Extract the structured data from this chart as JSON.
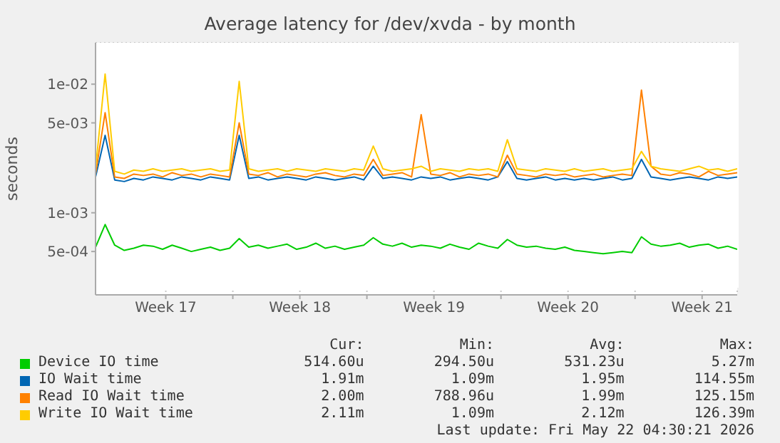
{
  "chart_data": {
    "type": "line",
    "title": "Average latency for /dev/xvda - by month",
    "ylabel": "seconds",
    "log": "y",
    "grid": true,
    "legend": "bottom",
    "marker": "none",
    "line_style": "solid",
    "xlim": [
      "2026-04-19T20:00",
      "2026-05-23T08:00"
    ],
    "xticks": [
      {
        "value": "2026-04-23T12:00",
        "label": "Week 17"
      },
      {
        "value": "2026-04-27T00:00",
        "label": null
      },
      {
        "value": "2026-04-30T12:00",
        "label": "Week 18"
      },
      {
        "value": "2026-05-04T00:00",
        "label": null
      },
      {
        "value": "2026-05-07T12:00",
        "label": "Week 19"
      },
      {
        "value": "2026-05-11T00:00",
        "label": null
      },
      {
        "value": "2026-05-14T12:00",
        "label": "Week 20"
      },
      {
        "value": "2026-05-18T00:00",
        "label": null
      },
      {
        "value": "2026-05-21T12:00",
        "label": "Week 21"
      }
    ],
    "ylim": [
      0.00023,
      0.021
    ],
    "yticks": [
      {
        "value": 0.0005,
        "label": "5e-04"
      },
      {
        "value": 0.001,
        "label": "1e-03"
      },
      {
        "value": 0.005,
        "label": "5e-03"
      },
      {
        "value": 0.01,
        "label": "1e-02"
      }
    ],
    "x": [
      "2026-04-19T20:00",
      "2026-04-20T08:00",
      "2026-04-20T20:00",
      "2026-04-21T08:00",
      "2026-04-21T20:00",
      "2026-04-22T08:00",
      "2026-04-22T20:00",
      "2026-04-23T08:00",
      "2026-04-23T20:00",
      "2026-04-24T08:00",
      "2026-04-24T20:00",
      "2026-04-25T08:00",
      "2026-04-25T20:00",
      "2026-04-26T08:00",
      "2026-04-26T20:00",
      "2026-04-27T08:00",
      "2026-04-27T20:00",
      "2026-04-28T08:00",
      "2026-04-28T20:00",
      "2026-04-29T08:00",
      "2026-04-29T20:00",
      "2026-04-30T08:00",
      "2026-04-30T20:00",
      "2026-05-01T08:00",
      "2026-05-01T20:00",
      "2026-05-02T08:00",
      "2026-05-02T20:00",
      "2026-05-03T08:00",
      "2026-05-03T20:00",
      "2026-05-04T08:00",
      "2026-05-04T20:00",
      "2026-05-05T08:00",
      "2026-05-05T20:00",
      "2026-05-06T08:00",
      "2026-05-06T20:00",
      "2026-05-07T08:00",
      "2026-05-07T20:00",
      "2026-05-08T08:00",
      "2026-05-08T20:00",
      "2026-05-09T08:00",
      "2026-05-09T20:00",
      "2026-05-10T08:00",
      "2026-05-10T20:00",
      "2026-05-11T08:00",
      "2026-05-11T20:00",
      "2026-05-12T08:00",
      "2026-05-12T20:00",
      "2026-05-13T08:00",
      "2026-05-13T20:00",
      "2026-05-14T08:00",
      "2026-05-14T20:00",
      "2026-05-15T08:00",
      "2026-05-15T20:00",
      "2026-05-16T08:00",
      "2026-05-16T20:00",
      "2026-05-17T08:00",
      "2026-05-17T20:00",
      "2026-05-18T08:00",
      "2026-05-18T20:00",
      "2026-05-19T08:00",
      "2026-05-19T20:00",
      "2026-05-20T08:00",
      "2026-05-20T20:00",
      "2026-05-21T08:00",
      "2026-05-21T20:00",
      "2026-05-22T08:00",
      "2026-05-22T20:00",
      "2026-05-23T08:00"
    ],
    "series": [
      {
        "name": "Device IO time",
        "color": "#00cc00",
        "values": [
          0.00054,
          0.00081,
          0.00056,
          0.00051,
          0.00053,
          0.00056,
          0.00055,
          0.00052,
          0.00056,
          0.00053,
          0.0005,
          0.00052,
          0.00054,
          0.00051,
          0.00053,
          0.00063,
          0.00054,
          0.00056,
          0.00053,
          0.00055,
          0.00057,
          0.00052,
          0.00054,
          0.00058,
          0.00053,
          0.00055,
          0.00052,
          0.00054,
          0.00056,
          0.00064,
          0.00057,
          0.00055,
          0.00058,
          0.00054,
          0.00056,
          0.00055,
          0.00053,
          0.00057,
          0.00054,
          0.00052,
          0.00058,
          0.00055,
          0.00053,
          0.00062,
          0.00056,
          0.00054,
          0.00055,
          0.00053,
          0.00052,
          0.00054,
          0.00051,
          0.0005,
          0.00049,
          0.00048,
          0.00049,
          0.0005,
          0.00049,
          0.00065,
          0.00057,
          0.00055,
          0.00056,
          0.00058,
          0.00054,
          0.00056,
          0.00057,
          0.00053,
          0.00055,
          0.00052
        ]
      },
      {
        "name": "IO Wait time",
        "color": "#0066b3",
        "values": [
          0.0019,
          0.004,
          0.0018,
          0.00175,
          0.00185,
          0.0018,
          0.0019,
          0.00185,
          0.0018,
          0.0019,
          0.00185,
          0.0018,
          0.0019,
          0.00185,
          0.0018,
          0.004,
          0.00185,
          0.0019,
          0.0018,
          0.00185,
          0.0019,
          0.00185,
          0.0018,
          0.0019,
          0.00185,
          0.0018,
          0.00185,
          0.0019,
          0.0018,
          0.0023,
          0.00185,
          0.0019,
          0.00185,
          0.0018,
          0.0019,
          0.00185,
          0.0019,
          0.0018,
          0.00185,
          0.0019,
          0.00185,
          0.0018,
          0.0019,
          0.0025,
          0.00185,
          0.0018,
          0.00185,
          0.0019,
          0.0018,
          0.00185,
          0.0018,
          0.00185,
          0.0018,
          0.00185,
          0.0019,
          0.0018,
          0.00185,
          0.0026,
          0.0019,
          0.00185,
          0.0018,
          0.00185,
          0.0019,
          0.00185,
          0.0018,
          0.0019,
          0.00185,
          0.0019
        ]
      },
      {
        "name": "Read IO Wait time",
        "color": "#ff8000",
        "values": [
          0.002,
          0.006,
          0.0019,
          0.00185,
          0.002,
          0.00195,
          0.002,
          0.0019,
          0.00205,
          0.00195,
          0.002,
          0.0019,
          0.002,
          0.00195,
          0.0019,
          0.005,
          0.002,
          0.00195,
          0.00205,
          0.0019,
          0.002,
          0.00195,
          0.0019,
          0.002,
          0.00205,
          0.00195,
          0.0019,
          0.002,
          0.00195,
          0.0026,
          0.00195,
          0.002,
          0.00205,
          0.0019,
          0.0058,
          0.002,
          0.00195,
          0.00205,
          0.0019,
          0.002,
          0.00195,
          0.002,
          0.0019,
          0.0028,
          0.002,
          0.00195,
          0.0019,
          0.002,
          0.00195,
          0.002,
          0.0019,
          0.00195,
          0.002,
          0.0019,
          0.00195,
          0.002,
          0.00195,
          0.009,
          0.0023,
          0.002,
          0.00195,
          0.00205,
          0.002,
          0.0019,
          0.0021,
          0.00195,
          0.002,
          0.00205
        ]
      },
      {
        "name": "Write IO Wait time",
        "color": "#ffcc00",
        "values": [
          0.0022,
          0.012,
          0.0021,
          0.002,
          0.00215,
          0.0021,
          0.0022,
          0.0021,
          0.00215,
          0.0022,
          0.0021,
          0.00215,
          0.0022,
          0.0021,
          0.00215,
          0.0105,
          0.0022,
          0.0021,
          0.00215,
          0.0022,
          0.0021,
          0.0022,
          0.00215,
          0.0021,
          0.0022,
          0.00215,
          0.0021,
          0.0022,
          0.00215,
          0.0033,
          0.0022,
          0.0021,
          0.00215,
          0.0022,
          0.0023,
          0.0021,
          0.0022,
          0.00215,
          0.0021,
          0.0022,
          0.00215,
          0.0022,
          0.0021,
          0.0037,
          0.0022,
          0.00215,
          0.0021,
          0.0022,
          0.00215,
          0.0021,
          0.0022,
          0.0021,
          0.00215,
          0.0022,
          0.0021,
          0.00215,
          0.0022,
          0.003,
          0.0023,
          0.0022,
          0.00215,
          0.0021,
          0.0022,
          0.0023,
          0.00215,
          0.0022,
          0.0021,
          0.0022
        ]
      }
    ],
    "annotations": [
      "Cur:",
      "Min:",
      "Avg:",
      "Max:",
      "514.60u",
      "294.50u",
      "531.23u",
      "5.27m",
      "1.91m",
      "1.09m",
      "1.95m",
      "114.55m",
      "2.00m",
      "788.96u",
      "1.99m",
      "125.15m",
      "2.11m",
      "1.09m",
      "2.12m",
      "126.39m",
      "Last update: Fri May 22 04:30:21 2026"
    ]
  }
}
